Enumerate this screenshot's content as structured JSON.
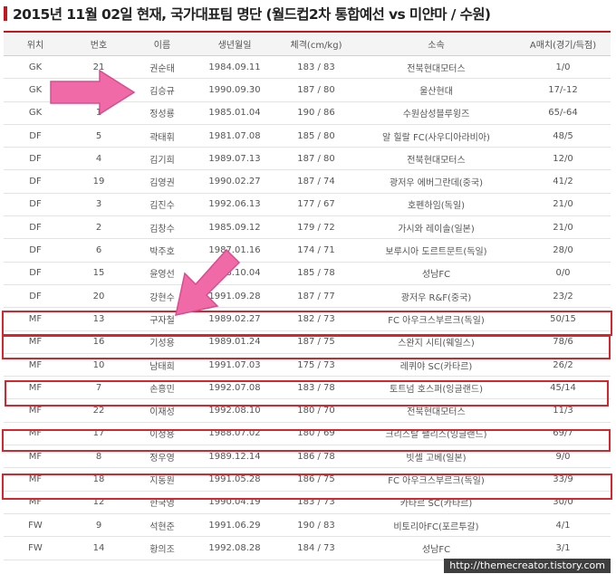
{
  "title": "2015년 11월 02일 현재, 국가대표팀 명단 (월드컵2차 통합예선 vs 미얀마 / 수원)",
  "columns": [
    "위치",
    "번호",
    "이름",
    "생년월일",
    "체격(cm/kg)",
    "소속",
    "A매치(경기/득점)"
  ],
  "players": [
    {
      "pos": "GK",
      "num": "21",
      "name": "권순태",
      "birth": "1984.09.11",
      "body": "183 / 83",
      "club": "전북현대모터스",
      "caps": "1/0"
    },
    {
      "pos": "GK",
      "num": "1",
      "name": "김승규",
      "birth": "1990.09.30",
      "body": "187 / 80",
      "club": "울산현대",
      "caps": "17/-12"
    },
    {
      "pos": "GK",
      "num": "1",
      "name": "정성룡",
      "birth": "1985.01.04",
      "body": "190 / 86",
      "club": "수원삼성블루윙즈",
      "caps": "65/-64"
    },
    {
      "pos": "DF",
      "num": "5",
      "name": "곽태휘",
      "birth": "1981.07.08",
      "body": "185 / 80",
      "club": "알 힐랄 FC(사우디아라비아)",
      "caps": "48/5"
    },
    {
      "pos": "DF",
      "num": "4",
      "name": "김기희",
      "birth": "1989.07.13",
      "body": "187 / 80",
      "club": "전북현대모터스",
      "caps": "12/0"
    },
    {
      "pos": "DF",
      "num": "19",
      "name": "김영권",
      "birth": "1990.02.27",
      "body": "187 / 74",
      "club": "광저우 에버그란데(중국)",
      "caps": "41/2"
    },
    {
      "pos": "DF",
      "num": "3",
      "name": "김진수",
      "birth": "1992.06.13",
      "body": "177 / 67",
      "club": "호펜하임(독일)",
      "caps": "21/0"
    },
    {
      "pos": "DF",
      "num": "2",
      "name": "김창수",
      "birth": "1985.09.12",
      "body": "179 / 72",
      "club": "가시와 레이솔(일본)",
      "caps": "21/0"
    },
    {
      "pos": "DF",
      "num": "6",
      "name": "박주호",
      "birth": "1987.01.16",
      "body": "174 / 71",
      "club": "보루시아 도르트문트(독일)",
      "caps": "28/0"
    },
    {
      "pos": "DF",
      "num": "15",
      "name": "윤영선",
      "birth": "1988.10.04",
      "body": "185 / 78",
      "club": "성남FC",
      "caps": "0/0"
    },
    {
      "pos": "DF",
      "num": "20",
      "name": "강현수",
      "birth": "1991.09.28",
      "body": "187 / 77",
      "club": "광저우 R&F(중국)",
      "caps": "23/2"
    },
    {
      "pos": "MF",
      "num": "13",
      "name": "구자철",
      "birth": "1989.02.27",
      "body": "182 / 73",
      "club": "FC 아우크스부르크(독일)",
      "caps": "50/15"
    },
    {
      "pos": "MF",
      "num": "16",
      "name": "기성용",
      "birth": "1989.01.24",
      "body": "187 / 75",
      "club": "스완지 시티(웨일스)",
      "caps": "78/6"
    },
    {
      "pos": "MF",
      "num": "10",
      "name": "남태희",
      "birth": "1991.07.03",
      "body": "175 / 73",
      "club": "레퀴야 SC(카타르)",
      "caps": "26/2"
    },
    {
      "pos": "MF",
      "num": "7",
      "name": "손흥민",
      "birth": "1992.07.08",
      "body": "183 / 78",
      "club": "토트넘 호스퍼(잉글랜드)",
      "caps": "45/14"
    },
    {
      "pos": "MF",
      "num": "22",
      "name": "이재성",
      "birth": "1992.08.10",
      "body": "180 / 70",
      "club": "전북현대모터스",
      "caps": "11/3"
    },
    {
      "pos": "MF",
      "num": "17",
      "name": "이청용",
      "birth": "1988.07.02",
      "body": "180 / 69",
      "club": "크리스탈 팰리스(잉글랜드)",
      "caps": "69/7"
    },
    {
      "pos": "MF",
      "num": "8",
      "name": "정우영",
      "birth": "1989.12.14",
      "body": "186 / 78",
      "club": "빗셀 고베(일본)",
      "caps": "9/0"
    },
    {
      "pos": "MF",
      "num": "18",
      "name": "지동원",
      "birth": "1991.05.28",
      "body": "186 / 75",
      "club": "FC 아우크스부르크(독일)",
      "caps": "33/9"
    },
    {
      "pos": "MF",
      "num": "12",
      "name": "한국영",
      "birth": "1990.04.19",
      "body": "183 / 73",
      "club": "카타르 SC(카타르)",
      "caps": "30/0"
    },
    {
      "pos": "FW",
      "num": "9",
      "name": "석현준",
      "birth": "1991.06.29",
      "body": "190 / 83",
      "club": "비토리아FC(포르투갈)",
      "caps": "4/1"
    },
    {
      "pos": "FW",
      "num": "14",
      "name": "황의조",
      "birth": "1992.08.28",
      "body": "184 / 73",
      "club": "성남FC",
      "caps": "3/1"
    }
  ],
  "highlight_color": "#d6262d",
  "arrow_color": "#f06aa8",
  "watermark": "http://themecreator.tistory.com"
}
